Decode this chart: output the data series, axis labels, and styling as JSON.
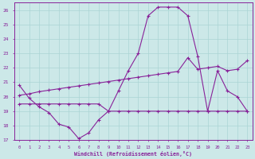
{
  "xlabel": "Windchill (Refroidissement éolien,°C)",
  "background_color": "#cce8e8",
  "grid_color": "#aad4d4",
  "line_color": "#882299",
  "x": [
    0,
    1,
    2,
    3,
    4,
    5,
    6,
    7,
    8,
    9,
    10,
    11,
    12,
    13,
    14,
    15,
    16,
    17,
    18,
    19,
    20,
    21,
    22,
    23
  ],
  "line1": [
    20.8,
    19.9,
    19.3,
    18.9,
    18.1,
    17.9,
    17.1,
    17.5,
    18.4,
    19.0,
    20.4,
    21.8,
    23.0,
    25.6,
    26.2,
    26.2,
    26.2,
    25.6,
    22.8,
    19.0,
    21.8,
    20.4,
    20.0,
    19.0
  ],
  "line2": [
    20.1,
    20.2,
    20.35,
    20.45,
    20.55,
    20.65,
    20.75,
    20.85,
    20.95,
    21.05,
    21.15,
    21.25,
    21.35,
    21.45,
    21.55,
    21.65,
    21.75,
    22.7,
    21.9,
    22.0,
    22.1,
    21.8,
    21.9,
    22.5
  ],
  "line3": [
    19.5,
    19.5,
    19.5,
    19.5,
    19.5,
    19.5,
    19.5,
    19.5,
    19.5,
    19.0,
    19.0,
    19.0,
    19.0,
    19.0,
    19.0,
    19.0,
    19.0,
    19.0,
    19.0,
    19.0,
    19.0,
    19.0,
    19.0,
    19.0
  ],
  "ylim": [
    17,
    26.5
  ],
  "yticks": [
    17,
    18,
    19,
    20,
    21,
    22,
    23,
    24,
    25,
    26
  ],
  "font_color": "#882299"
}
